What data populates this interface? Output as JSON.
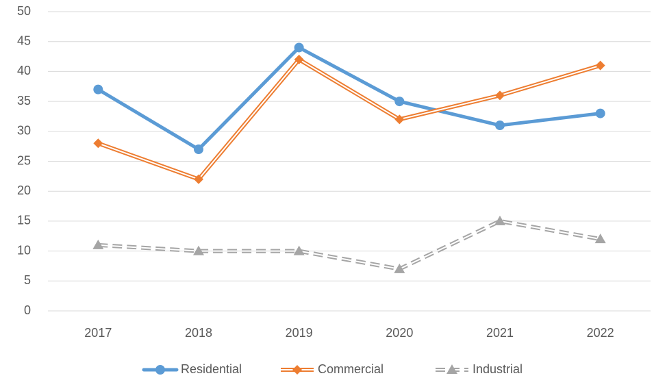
{
  "chart_data": {
    "type": "line",
    "categories": [
      "2017",
      "2018",
      "2019",
      "2020",
      "2021",
      "2022"
    ],
    "series": [
      {
        "name": "Residential",
        "color": "#5b9bd5",
        "marker": "circle",
        "line_style": "solid",
        "values": [
          37,
          27,
          44,
          35,
          31,
          33
        ]
      },
      {
        "name": "Commercial",
        "color": "#ed7d31",
        "marker": "diamond",
        "line_style": "double",
        "values": [
          28,
          22,
          42,
          32,
          36,
          41
        ]
      },
      {
        "name": "Industrial",
        "color": "#a5a5a5",
        "marker": "triangle",
        "line_style": "double-dashed",
        "values": [
          11,
          10,
          10,
          7,
          15,
          12
        ]
      }
    ],
    "ylim": [
      0,
      50
    ],
    "yticks": [
      0,
      5,
      10,
      15,
      20,
      25,
      30,
      35,
      40,
      45,
      50
    ],
    "grid": true,
    "legend": "bottom"
  }
}
